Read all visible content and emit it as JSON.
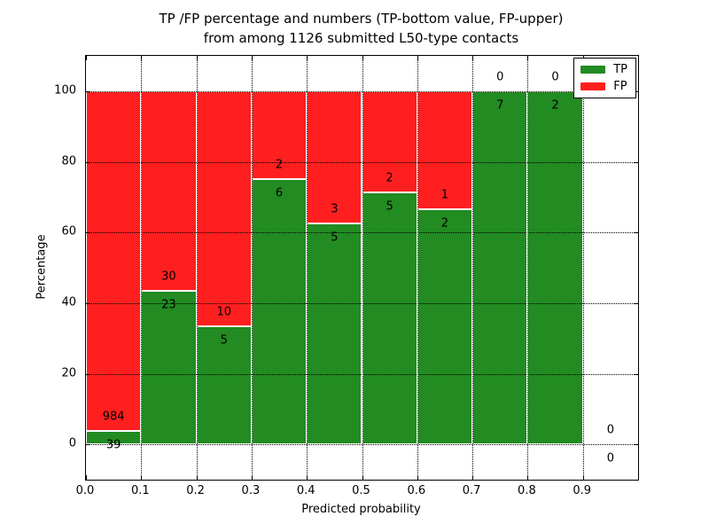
{
  "figure": {
    "background": "#ffffff",
    "title_line1": "TP /FP percentage and numbers (TP-bottom value, FP-upper)",
    "title_line2": "from among 1126 submitted L50-type contacts"
  },
  "chart_data": {
    "type": "bar",
    "subtype": "stacked-percentage",
    "title": "TP /FP percentage and numbers (TP-bottom value, FP-upper)",
    "subtitle": "from among 1126 submitted L50-type contacts",
    "xlabel": "Predicted probability",
    "ylabel": "Percentage",
    "xlim": [
      0.0,
      1.0
    ],
    "ylim": [
      -10,
      110
    ],
    "xticks": [
      "0.0",
      "0.1",
      "0.2",
      "0.3",
      "0.4",
      "0.5",
      "0.6",
      "0.7",
      "0.8",
      "0.9"
    ],
    "yticks": [
      "0",
      "20",
      "40",
      "60",
      "80",
      "100"
    ],
    "grid": "dotted",
    "grid_above_bars": true,
    "total_submitted": 1126,
    "bin_width": 0.1,
    "bin_starts": [
      0.0,
      0.1,
      0.2,
      0.3,
      0.4,
      0.5,
      0.6,
      0.7,
      0.8,
      0.9
    ],
    "series": [
      {
        "name": "TP",
        "color": "#228b22",
        "counts": [
          39,
          23,
          5,
          6,
          5,
          5,
          2,
          7,
          2,
          0
        ],
        "percent": [
          3.81,
          43.4,
          33.33,
          75.0,
          62.5,
          71.43,
          66.67,
          100.0,
          100.0,
          0.0
        ]
      },
      {
        "name": "FP",
        "color": "#ff1f1f",
        "counts": [
          984,
          30,
          10,
          2,
          3,
          2,
          1,
          0,
          0,
          0
        ],
        "percent": [
          96.19,
          56.6,
          66.67,
          25.0,
          37.5,
          28.57,
          33.33,
          0.0,
          0.0,
          0.0
        ]
      }
    ],
    "legend": {
      "position": "upper right",
      "entries": [
        {
          "label": "TP",
          "color": "#228b22"
        },
        {
          "label": "FP",
          "color": "#ff1f1f"
        }
      ]
    }
  }
}
